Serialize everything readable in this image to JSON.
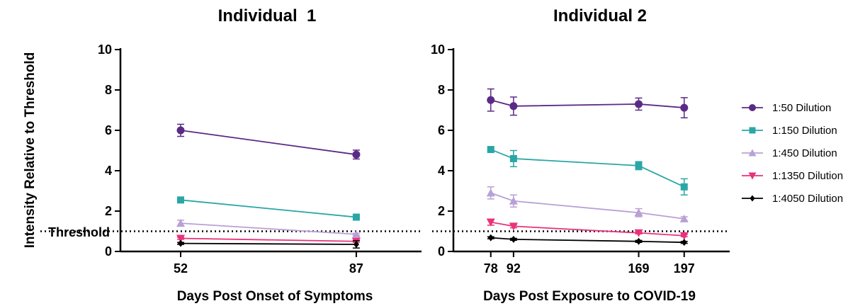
{
  "y_axis_label": "Intensity Relative to Threshold",
  "threshold_label": "Threshold",
  "legend": [
    {
      "label": "1:50 Dilution",
      "color": "#5b2a86",
      "marker": "circle"
    },
    {
      "label": "1:150 Dilution",
      "color": "#2aa6a6",
      "marker": "square"
    },
    {
      "label": "1:450 Dilution",
      "color": "#b9a0d6",
      "marker": "triangle-up"
    },
    {
      "label": "1:1350 Dilution",
      "color": "#e8327a",
      "marker": "triangle-down"
    },
    {
      "label": "1:4050 Dilution",
      "color": "#000000",
      "marker": "diamond"
    }
  ],
  "chart_data": [
    {
      "type": "line",
      "title": "Individual  1",
      "xlabel": "Days Post Onset of Symptoms",
      "ylabel": "Intensity Relative to Threshold",
      "x": [
        52,
        87
      ],
      "xticks": [
        "52",
        "87"
      ],
      "xlim": [
        40,
        100
      ],
      "ylim": [
        0,
        10
      ],
      "yticks": [
        "0",
        "2",
        "4",
        "6",
        "8",
        "10"
      ],
      "threshold": 1,
      "series": [
        {
          "name": "1:50 Dilution",
          "values": [
            6.0,
            4.8
          ],
          "err": [
            0.3,
            0.22
          ]
        },
        {
          "name": "1:150 Dilution",
          "values": [
            2.55,
            1.7
          ],
          "err": [
            0.1,
            0.08
          ]
        },
        {
          "name": "1:450 Dilution",
          "values": [
            1.4,
            0.85
          ],
          "err": [
            0.15,
            0.05
          ]
        },
        {
          "name": "1:1350 Dilution",
          "values": [
            0.65,
            0.5
          ],
          "err": [
            0.05,
            0.05
          ]
        },
        {
          "name": "1:4050 Dilution",
          "values": [
            0.4,
            0.35
          ],
          "err": [
            0.05,
            0.18
          ]
        }
      ]
    },
    {
      "type": "line",
      "title": "Individual 2",
      "xlabel": "Days Post Exposure to COVID-19",
      "ylabel": "Intensity Relative to Threshold",
      "x": [
        78,
        92,
        169,
        197
      ],
      "xticks": [
        "78",
        "92",
        "169",
        "197"
      ],
      "xlim": [
        55,
        225
      ],
      "ylim": [
        0,
        10
      ],
      "yticks": [
        "0",
        "2",
        "4",
        "6",
        "8",
        "10"
      ],
      "threshold": 1,
      "series": [
        {
          "name": "1:50 Dilution",
          "values": [
            7.5,
            7.2,
            7.3,
            7.12
          ],
          "err": [
            0.55,
            0.45,
            0.3,
            0.5
          ]
        },
        {
          "name": "1:150 Dilution",
          "values": [
            5.05,
            4.6,
            4.25,
            3.2
          ],
          "err": [
            0.1,
            0.4,
            0.2,
            0.4
          ]
        },
        {
          "name": "1:450 Dilution",
          "values": [
            2.9,
            2.5,
            1.92,
            1.62
          ],
          "err": [
            0.3,
            0.3,
            0.2,
            0.1
          ]
        },
        {
          "name": "1:1350 Dilution",
          "values": [
            1.45,
            1.25,
            0.92,
            0.78
          ],
          "err": [
            0.15,
            0.08,
            0.05,
            0.05
          ]
        },
        {
          "name": "1:4050 Dilution",
          "values": [
            0.68,
            0.6,
            0.5,
            0.45
          ],
          "err": [
            0.05,
            0.05,
            0.05,
            0.05
          ]
        }
      ]
    }
  ]
}
